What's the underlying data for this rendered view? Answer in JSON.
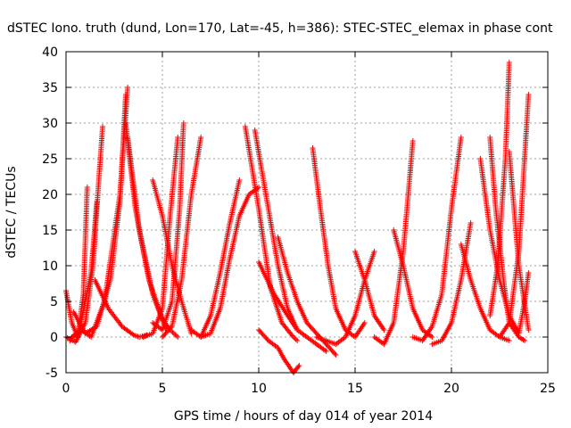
{
  "chart_data": {
    "type": "scatter",
    "title": "dSTEC Iono. truth (dund, Lon=170, Lat=-45, h=386): STEC-STEC_elemax in phase cont",
    "xlabel": "GPS time / hours of day 014 of year 2014",
    "ylabel": "dSTEC  / TECUs",
    "xlim": [
      0,
      25
    ],
    "ylim": [
      -5,
      40
    ],
    "xticks": [
      "0",
      "5",
      "10",
      "15",
      "20",
      "25"
    ],
    "yticks": [
      "-5",
      "0",
      "5",
      "10",
      "15",
      "20",
      "25",
      "30",
      "35",
      "40"
    ],
    "grid": true,
    "marker": "+",
    "color": "#ff0000",
    "series": [
      {
        "x": [
          0.0,
          0.3,
          0.6,
          0.9,
          1.1
        ],
        "y": [
          6.5,
          2.0,
          0.0,
          6.0,
          21.0
        ]
      },
      {
        "x": [
          0.0,
          0.5,
          1.0,
          1.4,
          1.7,
          1.9
        ],
        "y": [
          0.0,
          -0.7,
          2.0,
          10.0,
          22.0,
          29.5
        ]
      },
      {
        "x": [
          0.2,
          0.7,
          1.3,
          1.6
        ],
        "y": [
          -0.5,
          1.0,
          9.0,
          19.0
        ]
      },
      {
        "x": [
          0.3,
          0.8,
          1.3,
          2.0,
          2.8,
          3.2
        ],
        "y": [
          0.0,
          1.0,
          0.0,
          5.0,
          20.0,
          35.0
        ]
      },
      {
        "x": [
          0.4,
          1.0,
          1.6,
          2.3,
          2.8,
          3.1
        ],
        "y": [
          3.5,
          0.5,
          1.5,
          8.0,
          19.0,
          34.0
        ]
      },
      {
        "x": [
          1.5,
          2.2,
          2.9,
          3.5,
          3.8,
          4.2
        ],
        "y": [
          8.0,
          4.0,
          1.5,
          0.3,
          0.0,
          0.3
        ]
      },
      {
        "x": [
          3.1,
          3.6,
          4.3,
          5.0,
          5.4,
          5.8
        ],
        "y": [
          30.0,
          18.0,
          8.0,
          2.5,
          1.0,
          0.0
        ]
      },
      {
        "x": [
          3.2,
          3.8,
          4.5,
          5.2
        ],
        "y": [
          28.0,
          15.0,
          6.0,
          1.0
        ]
      },
      {
        "x": [
          4.5,
          5.0,
          5.5,
          5.9,
          6.1
        ],
        "y": [
          2.0,
          1.0,
          5.0,
          18.0,
          30.0
        ]
      },
      {
        "x": [
          4.0,
          4.5,
          5.0,
          5.4,
          5.8
        ],
        "y": [
          0.0,
          0.5,
          4.0,
          17.0,
          28.0
        ]
      },
      {
        "x": [
          5.0,
          5.5,
          6.0,
          6.5,
          7.0
        ],
        "y": [
          0.0,
          1.5,
          8.0,
          20.0,
          28.0
        ]
      },
      {
        "x": [
          4.5,
          5.0,
          5.5,
          6.0,
          6.5
        ],
        "y": [
          22.0,
          17.0,
          10.0,
          5.0,
          0.5
        ]
      },
      {
        "x": [
          6.5,
          7.0,
          7.5,
          8.0,
          8.5,
          9.0
        ],
        "y": [
          1.0,
          0.0,
          3.0,
          9.0,
          16.0,
          22.0
        ]
      },
      {
        "x": [
          7.0,
          7.5,
          8.0,
          8.5,
          9.0,
          9.5,
          10.0
        ],
        "y": [
          0.0,
          0.5,
          4.0,
          11.0,
          17.0,
          20.0,
          21.0
        ]
      },
      {
        "x": [
          9.3,
          10.0,
          10.6,
          11.2,
          11.8,
          12.0
        ],
        "y": [
          29.5,
          18.0,
          7.0,
          2.0,
          0.0,
          -0.5
        ]
      },
      {
        "x": [
          9.8,
          10.5,
          11.0,
          11.5,
          12.0
        ],
        "y": [
          29.0,
          18.0,
          10.0,
          4.0,
          1.0
        ]
      },
      {
        "x": [
          10.0,
          10.5,
          11.0,
          11.3,
          11.8,
          12.1
        ],
        "y": [
          1.0,
          -0.5,
          -1.5,
          -3.0,
          -5.0,
          -4.0
        ]
      },
      {
        "x": [
          10.0,
          10.8,
          11.5,
          12.0,
          12.5,
          13.0,
          13.5
        ],
        "y": [
          10.5,
          6.0,
          3.0,
          1.0,
          0.0,
          -1.0,
          -2.0
        ]
      },
      {
        "x": [
          11.0,
          11.5,
          12.0,
          12.5,
          13.0,
          13.5,
          14.0
        ],
        "y": [
          14.0,
          9.0,
          5.0,
          2.0,
          0.5,
          -1.0,
          -2.5
        ]
      },
      {
        "x": [
          12.8,
          13.2,
          13.6,
          14.0,
          14.5,
          15.0,
          15.5
        ],
        "y": [
          26.5,
          18.0,
          10.0,
          4.0,
          1.0,
          0.0,
          2.0
        ]
      },
      {
        "x": [
          13.0,
          13.5,
          14.0,
          14.5,
          15.0,
          15.5,
          16.0
        ],
        "y": [
          0.0,
          -0.5,
          -1.0,
          0.0,
          3.0,
          8.0,
          12.0
        ]
      },
      {
        "x": [
          15.0,
          15.5,
          16.0,
          16.5
        ],
        "y": [
          12.0,
          8.0,
          3.0,
          1.0
        ]
      },
      {
        "x": [
          16.0,
          16.5,
          17.0,
          17.5,
          18.0
        ],
        "y": [
          0.0,
          -1.0,
          2.0,
          12.0,
          27.5
        ]
      },
      {
        "x": [
          17.0,
          17.5,
          18.0,
          18.5,
          19.0
        ],
        "y": [
          15.0,
          10.0,
          4.0,
          1.0,
          0.0
        ]
      },
      {
        "x": [
          18.0,
          18.5,
          19.0,
          19.5,
          20.0,
          20.5
        ],
        "y": [
          0.0,
          -0.5,
          1.5,
          6.0,
          18.0,
          28.0
        ]
      },
      {
        "x": [
          19.0,
          19.5,
          20.0,
          20.5,
          21.0
        ],
        "y": [
          -1.0,
          -0.5,
          2.0,
          8.0,
          16.0
        ]
      },
      {
        "x": [
          20.5,
          21.0,
          21.5,
          22.0,
          22.5,
          23.0
        ],
        "y": [
          13.0,
          8.0,
          4.0,
          1.0,
          0.0,
          -0.5
        ]
      },
      {
        "x": [
          21.5,
          22.0,
          22.5,
          23.0,
          23.5
        ],
        "y": [
          25.0,
          15.0,
          8.0,
          3.0,
          0.5
        ]
      },
      {
        "x": [
          22.0,
          22.3,
          22.7,
          23.0,
          23.5,
          23.8
        ],
        "y": [
          28.0,
          18.0,
          8.0,
          2.0,
          0.0,
          -0.5
        ]
      },
      {
        "x": [
          22.0,
          22.4,
          22.8,
          23.0
        ],
        "y": [
          3.0,
          10.0,
          25.0,
          38.5
        ]
      },
      {
        "x": [
          22.5,
          23.0,
          23.5,
          24.0
        ],
        "y": [
          0.0,
          2.0,
          12.0,
          34.0
        ]
      },
      {
        "x": [
          23.0,
          23.5,
          24.0
        ],
        "y": [
          26.0,
          10.0,
          1.0
        ]
      },
      {
        "x": [
          23.5,
          23.8,
          24.0
        ],
        "y": [
          0.5,
          5.0,
          9.0
        ]
      }
    ]
  }
}
